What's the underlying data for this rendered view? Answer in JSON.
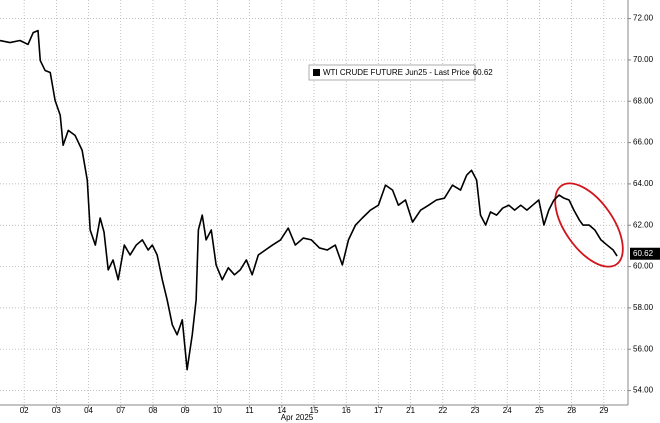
{
  "chart_data": {
    "type": "line",
    "x_label": "Apr 2025",
    "last_price": 60.62,
    "grid": true,
    "xlim": [
      -0.25,
      19.25
    ],
    "ylim": [
      53.3,
      72.9
    ],
    "xticks": [
      {
        "value": 0.5,
        "label": "02"
      },
      {
        "value": 1.5,
        "label": "03"
      },
      {
        "value": 2.5,
        "label": "04"
      },
      {
        "value": 3.5,
        "label": "07"
      },
      {
        "value": 4.5,
        "label": "08"
      },
      {
        "value": 5.5,
        "label": "09"
      },
      {
        "value": 6.5,
        "label": "10"
      },
      {
        "value": 7.5,
        "label": "11"
      },
      {
        "value": 8.5,
        "label": "14"
      },
      {
        "value": 9.5,
        "label": "15"
      },
      {
        "value": 10.5,
        "label": "16"
      },
      {
        "value": 11.5,
        "label": "17"
      },
      {
        "value": 12.5,
        "label": "21"
      },
      {
        "value": 13.5,
        "label": "22"
      },
      {
        "value": 14.5,
        "label": "23"
      },
      {
        "value": 15.5,
        "label": "24"
      },
      {
        "value": 16.5,
        "label": "25"
      },
      {
        "value": 17.5,
        "label": "28"
      },
      {
        "value": 18.5,
        "label": "29"
      }
    ],
    "yticks": [
      {
        "value": 54,
        "label": "54.00"
      },
      {
        "value": 56,
        "label": "56.00"
      },
      {
        "value": 58,
        "label": "58.00"
      },
      {
        "value": 60,
        "label": "60.00"
      },
      {
        "value": 62,
        "label": "62.00"
      },
      {
        "value": 64,
        "label": "64.00"
      },
      {
        "value": 66,
        "label": "66.00"
      },
      {
        "value": 68,
        "label": "68.00"
      },
      {
        "value": 70,
        "label": "70.00"
      },
      {
        "value": 72,
        "label": "72.00"
      }
    ],
    "x": [
      -0.25,
      0.06,
      0.37,
      0.62,
      0.78,
      0.93,
      1.0,
      1.15,
      1.31,
      1.46,
      1.62,
      1.71,
      1.87,
      2.08,
      2.3,
      2.46,
      2.55,
      2.71,
      2.86,
      2.98,
      3.11,
      3.26,
      3.42,
      3.61,
      3.79,
      3.98,
      4.17,
      4.35,
      4.48,
      4.63,
      4.79,
      4.94,
      5.1,
      5.25,
      5.41,
      5.56,
      5.72,
      5.84,
      5.91,
      6.03,
      6.15,
      6.31,
      6.46,
      6.65,
      6.84,
      7.03,
      7.21,
      7.4,
      7.58,
      7.77,
      7.99,
      8.21,
      8.46,
      8.7,
      8.92,
      9.17,
      9.42,
      9.67,
      9.91,
      10.16,
      10.38,
      10.57,
      10.79,
      11.0,
      11.25,
      11.5,
      11.72,
      11.94,
      12.12,
      12.34,
      12.56,
      12.81,
      13.06,
      13.3,
      13.55,
      13.8,
      14.05,
      14.24,
      14.39,
      14.55,
      14.67,
      14.83,
      14.98,
      15.17,
      15.36,
      15.55,
      15.73,
      15.92,
      16.11,
      16.29,
      16.48,
      16.64,
      16.79,
      16.95,
      17.11,
      17.26,
      17.42,
      17.57,
      17.74,
      17.85,
      18.04,
      18.22,
      18.41,
      18.6,
      18.79,
      18.91
    ],
    "series": [
      {
        "name": "WTI CRUDE FUTURE Jun25 - Last Price",
        "color": "#000000",
        "values": [
          70.94,
          70.84,
          70.94,
          70.75,
          71.32,
          71.42,
          69.97,
          69.49,
          69.39,
          68.04,
          67.32,
          65.87,
          66.59,
          66.35,
          65.63,
          64.18,
          61.77,
          61.04,
          62.35,
          61.67,
          59.84,
          60.32,
          59.36,
          61.04,
          60.56,
          61.04,
          61.29,
          60.8,
          61.04,
          60.56,
          59.36,
          58.39,
          57.18,
          56.7,
          57.42,
          55.01,
          56.7,
          58.39,
          61.77,
          62.49,
          61.29,
          61.77,
          60.08,
          59.36,
          59.94,
          59.6,
          59.84,
          60.32,
          59.6,
          60.56,
          60.8,
          61.04,
          61.29,
          61.86,
          61.04,
          61.38,
          61.29,
          60.9,
          60.8,
          61.04,
          60.08,
          61.29,
          62.01,
          62.35,
          62.73,
          62.97,
          63.94,
          63.7,
          62.97,
          63.22,
          62.15,
          62.73,
          62.97,
          63.22,
          63.31,
          63.94,
          63.7,
          64.42,
          64.66,
          64.18,
          62.49,
          62.01,
          62.64,
          62.49,
          62.83,
          62.97,
          62.73,
          62.97,
          62.73,
          62.97,
          63.22,
          62.01,
          62.73,
          63.22,
          63.46,
          63.31,
          63.22,
          62.73,
          62.25,
          62.01,
          62.01,
          61.77,
          61.29,
          61.04,
          60.8,
          60.51
        ]
      }
    ]
  }
}
